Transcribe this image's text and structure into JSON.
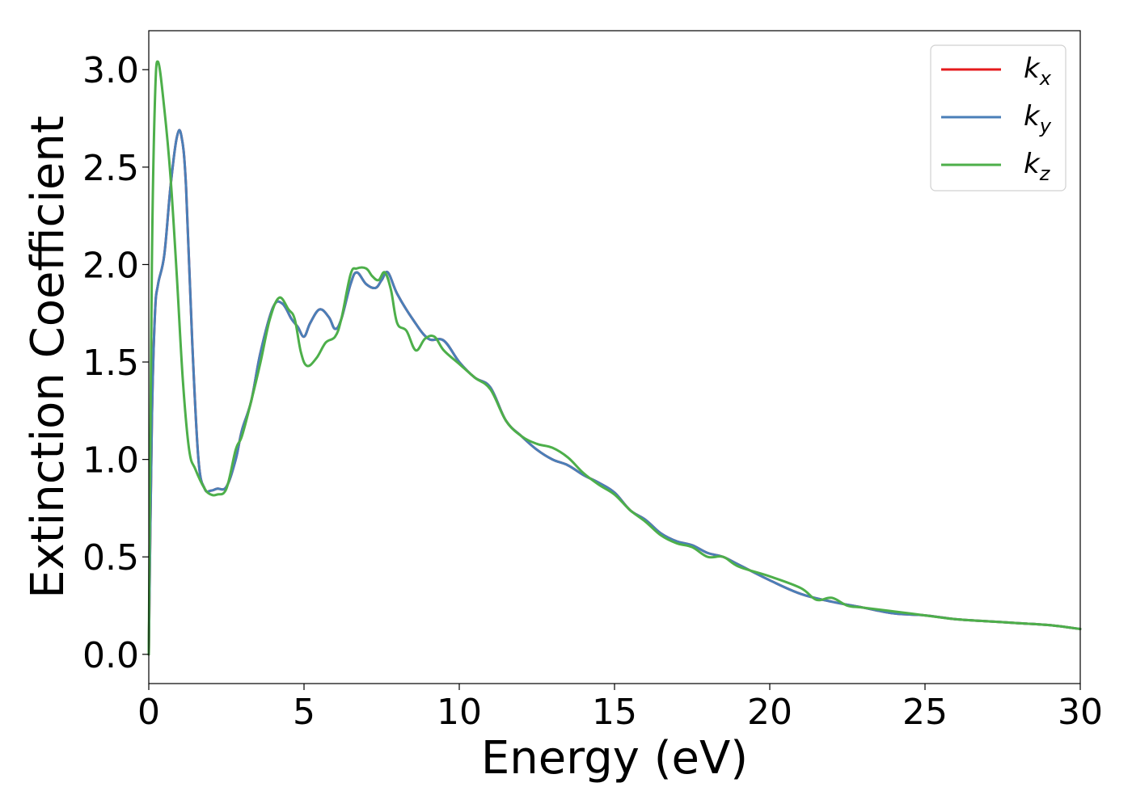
{
  "chart_data": {
    "type": "line",
    "title": "",
    "xlabel": "Energy (eV)",
    "ylabel": "Extinction Coefficient",
    "xlim": [
      0,
      30
    ],
    "ylim": [
      -0.15,
      3.2
    ],
    "xticks": [
      "0",
      "5",
      "10",
      "15",
      "20",
      "25",
      "30"
    ],
    "yticks": [
      "0.0",
      "0.5",
      "1.0",
      "1.5",
      "2.0",
      "2.5",
      "3.0"
    ],
    "grid": false,
    "legend_position": "top-right",
    "series": [
      {
        "name": "k_x",
        "legend_main": "k",
        "legend_sub": "x",
        "color": "#e41a1c",
        "x": [
          0,
          0.1,
          0.2,
          0.3,
          0.5,
          0.7,
          0.9,
          1.05,
          1.2,
          1.4,
          1.6,
          1.8,
          2.0,
          2.2,
          2.5,
          2.8,
          3.0,
          3.3,
          3.6,
          4.0,
          4.3,
          4.6,
          4.8,
          5.0,
          5.2,
          5.5,
          5.8,
          6.0,
          6.2,
          6.5,
          6.7,
          7.0,
          7.3,
          7.5,
          7.7,
          8.0,
          8.5,
          9.0,
          9.5,
          10.0,
          10.5,
          11.0,
          11.5,
          12.0,
          12.5,
          13.0,
          13.5,
          14.0,
          14.5,
          15.0,
          15.5,
          16.0,
          16.5,
          17.0,
          17.5,
          18.0,
          18.5,
          19.0,
          20.0,
          21.0,
          22.0,
          23.0,
          24.0,
          25.0,
          26.0,
          27.0,
          28.0,
          29.0,
          30.0
        ],
        "y": [
          0.0,
          1.2,
          1.75,
          1.9,
          2.05,
          2.4,
          2.65,
          2.66,
          2.4,
          1.6,
          1.0,
          0.85,
          0.84,
          0.85,
          0.86,
          1.0,
          1.15,
          1.3,
          1.55,
          1.78,
          1.8,
          1.72,
          1.68,
          1.63,
          1.7,
          1.77,
          1.73,
          1.67,
          1.72,
          1.9,
          1.96,
          1.9,
          1.88,
          1.92,
          1.96,
          1.85,
          1.72,
          1.62,
          1.61,
          1.5,
          1.42,
          1.37,
          1.2,
          1.12,
          1.05,
          1.0,
          0.97,
          0.92,
          0.88,
          0.83,
          0.74,
          0.69,
          0.62,
          0.58,
          0.56,
          0.52,
          0.5,
          0.46,
          0.38,
          0.31,
          0.27,
          0.24,
          0.21,
          0.2,
          0.18,
          0.17,
          0.16,
          0.15,
          0.13
        ]
      },
      {
        "name": "k_y",
        "legend_main": "k",
        "legend_sub": "y",
        "color": "#4a7fb8",
        "x": [
          0,
          0.1,
          0.2,
          0.3,
          0.5,
          0.7,
          0.9,
          1.05,
          1.2,
          1.4,
          1.6,
          1.8,
          2.0,
          2.2,
          2.5,
          2.8,
          3.0,
          3.3,
          3.6,
          4.0,
          4.3,
          4.6,
          4.8,
          5.0,
          5.2,
          5.5,
          5.8,
          6.0,
          6.2,
          6.5,
          6.7,
          7.0,
          7.3,
          7.5,
          7.7,
          8.0,
          8.5,
          9.0,
          9.5,
          10.0,
          10.5,
          11.0,
          11.5,
          12.0,
          12.5,
          13.0,
          13.5,
          14.0,
          14.5,
          15.0,
          15.5,
          16.0,
          16.5,
          17.0,
          17.5,
          18.0,
          18.5,
          19.0,
          20.0,
          21.0,
          22.0,
          23.0,
          24.0,
          25.0,
          26.0,
          27.0,
          28.0,
          29.0,
          30.0
        ],
        "y": [
          0.0,
          1.2,
          1.75,
          1.9,
          2.05,
          2.4,
          2.65,
          2.66,
          2.4,
          1.6,
          1.0,
          0.85,
          0.84,
          0.85,
          0.86,
          1.0,
          1.15,
          1.3,
          1.55,
          1.78,
          1.8,
          1.72,
          1.68,
          1.63,
          1.7,
          1.77,
          1.73,
          1.67,
          1.72,
          1.9,
          1.96,
          1.9,
          1.88,
          1.92,
          1.96,
          1.85,
          1.72,
          1.62,
          1.61,
          1.5,
          1.42,
          1.37,
          1.2,
          1.12,
          1.05,
          1.0,
          0.97,
          0.92,
          0.88,
          0.83,
          0.74,
          0.69,
          0.62,
          0.58,
          0.56,
          0.52,
          0.5,
          0.46,
          0.38,
          0.31,
          0.27,
          0.24,
          0.21,
          0.2,
          0.18,
          0.17,
          0.16,
          0.15,
          0.13
        ]
      },
      {
        "name": "k_z",
        "legend_main": "k",
        "legend_sub": "z",
        "color": "#4daf4a",
        "x": [
          0,
          0.1,
          0.2,
          0.3,
          0.5,
          0.7,
          0.9,
          1.1,
          1.3,
          1.5,
          1.8,
          2.0,
          2.2,
          2.5,
          2.8,
          3.0,
          3.3,
          3.6,
          3.9,
          4.2,
          4.5,
          4.7,
          4.9,
          5.1,
          5.4,
          5.7,
          6.0,
          6.2,
          6.5,
          6.7,
          7.0,
          7.2,
          7.4,
          7.6,
          7.8,
          8.0,
          8.3,
          8.6,
          8.9,
          9.2,
          9.5,
          10.0,
          10.5,
          11.0,
          11.5,
          12.0,
          12.5,
          13.0,
          13.5,
          14.0,
          14.5,
          15.0,
          15.5,
          16.0,
          16.5,
          17.0,
          17.5,
          18.0,
          18.5,
          19.0,
          20.0,
          21.0,
          21.5,
          22.0,
          22.5,
          23.0,
          24.0,
          25.0,
          26.0,
          27.0,
          28.0,
          29.0,
          30.0
        ],
        "y": [
          0.0,
          2.0,
          2.85,
          3.04,
          2.8,
          2.45,
          1.95,
          1.4,
          1.05,
          0.95,
          0.85,
          0.82,
          0.82,
          0.85,
          1.05,
          1.12,
          1.3,
          1.5,
          1.72,
          1.83,
          1.77,
          1.72,
          1.55,
          1.48,
          1.52,
          1.6,
          1.63,
          1.72,
          1.95,
          1.98,
          1.98,
          1.94,
          1.92,
          1.96,
          1.87,
          1.7,
          1.66,
          1.56,
          1.62,
          1.63,
          1.56,
          1.49,
          1.42,
          1.36,
          1.2,
          1.12,
          1.08,
          1.06,
          1.01,
          0.93,
          0.87,
          0.82,
          0.74,
          0.68,
          0.61,
          0.57,
          0.55,
          0.5,
          0.5,
          0.45,
          0.4,
          0.34,
          0.28,
          0.29,
          0.25,
          0.24,
          0.22,
          0.2,
          0.18,
          0.17,
          0.16,
          0.15,
          0.13
        ]
      }
    ]
  }
}
